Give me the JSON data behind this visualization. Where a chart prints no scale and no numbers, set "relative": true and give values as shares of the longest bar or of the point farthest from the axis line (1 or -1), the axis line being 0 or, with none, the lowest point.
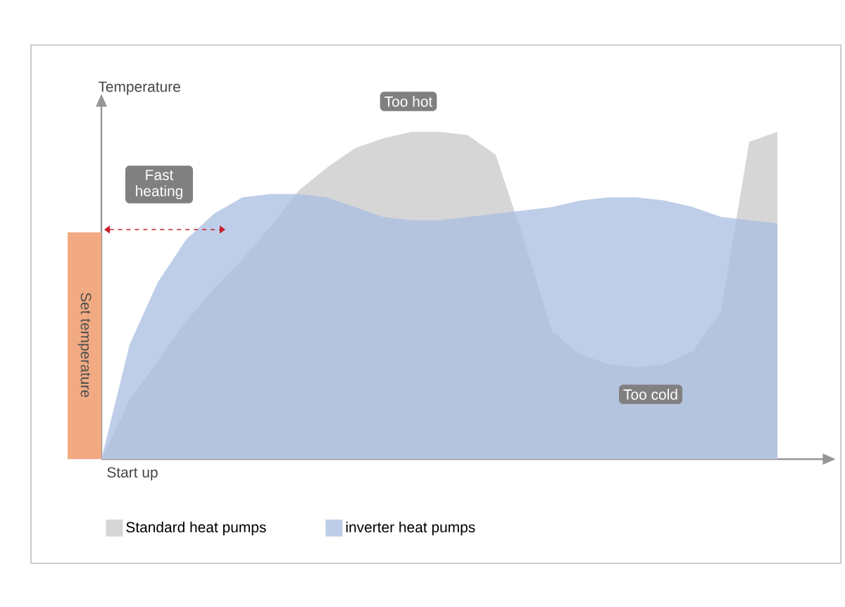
{
  "chart_data": {
    "type": "area",
    "relative": true,
    "xlabel": "Start up",
    "ylabel": "Temperature",
    "legend": "bottom left",
    "categories": [
      null,
      null,
      null,
      null,
      null,
      null,
      null,
      null,
      null,
      null,
      null,
      null,
      null,
      null,
      null,
      null,
      null,
      null,
      null,
      null,
      null,
      null,
      null,
      null,
      null
    ],
    "series": [
      {
        "name": "Standard heat pumps",
        "color": "#d6d6d6",
        "values": [
          0,
          0.18,
          0.3,
          0.42,
          0.52,
          0.61,
          0.71,
          0.82,
          0.89,
          0.95,
          0.98,
          1.0,
          1.0,
          0.99,
          0.93,
          0.67,
          0.39,
          0.32,
          0.29,
          0.28,
          0.29,
          0.33,
          0.45,
          0.97,
          1.0
        ]
      },
      {
        "name": "inverter heat pumps",
        "color": "#a9bde0",
        "values": [
          0,
          0.35,
          0.54,
          0.67,
          0.75,
          0.8,
          0.81,
          0.81,
          0.8,
          0.77,
          0.74,
          0.73,
          0.73,
          0.74,
          0.75,
          0.76,
          0.77,
          0.79,
          0.8,
          0.8,
          0.79,
          0.77,
          0.74,
          0.73,
          0.72
        ]
      }
    ],
    "annotations": [
      "Too hot",
      "Fast heating",
      "Too cold",
      "Set temperature"
    ]
  }
}
